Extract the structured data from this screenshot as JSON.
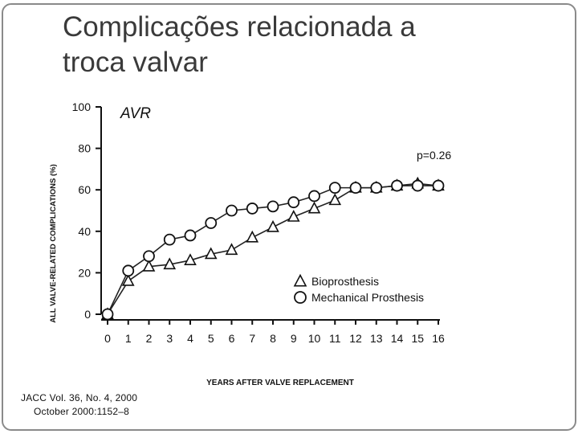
{
  "slide": {
    "title_line1": "Complicações relacionada a",
    "title_line2": "troca valvar"
  },
  "citation": {
    "line1": "JACC Vol. 36, No. 4, 2000",
    "line2": "October 2000:1152–8"
  },
  "chart_data": {
    "type": "line",
    "title": "AVR",
    "xlabel": "YEARS AFTER VALVE REPLACEMENT",
    "ylabel": "ALL VALVE-RELATED COMPLICATIONS (%)",
    "annotation": "p=0.26",
    "x": [
      0,
      1,
      2,
      3,
      4,
      5,
      6,
      7,
      8,
      9,
      10,
      11,
      12,
      13,
      14,
      15,
      16
    ],
    "xlim": [
      0,
      16
    ],
    "ylim": [
      0,
      100
    ],
    "yticks": [
      0,
      20,
      40,
      60,
      80,
      100
    ],
    "grid": false,
    "legend_position": "lower-right",
    "series": [
      {
        "name": "Bioprosthesis",
        "marker": "triangle",
        "values": [
          0,
          16,
          23,
          24,
          26,
          29,
          31,
          37,
          42,
          47,
          51,
          55,
          61,
          61,
          62,
          63,
          62
        ]
      },
      {
        "name": "Mechanical Prosthesis",
        "marker": "circle",
        "values": [
          0,
          21,
          28,
          36,
          38,
          44,
          50,
          51,
          52,
          54,
          57,
          61,
          61,
          61,
          62,
          62,
          62
        ]
      }
    ]
  }
}
